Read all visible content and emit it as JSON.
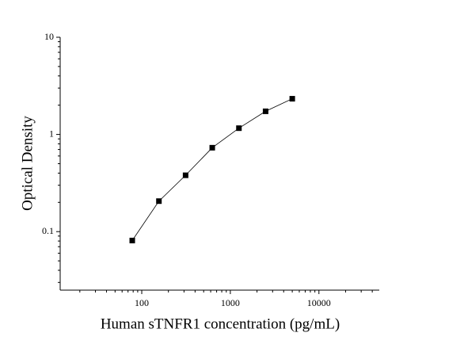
{
  "chart_data": {
    "type": "line",
    "x_label": "Human sTNFR1 concentration (pg/mL)",
    "y_label": "Optical Density",
    "x": [
      78.13,
      156.25,
      312.5,
      625,
      1250,
      2500,
      5000
    ],
    "series": [
      {
        "color": "#000000",
        "values": [
          0.081,
          0.206,
          0.38,
          0.73,
          1.16,
          1.73,
          2.33
        ]
      }
    ],
    "xlim": [
      12,
      48000
    ],
    "ylim": [
      0.025,
      10
    ],
    "x_log": true,
    "y_log": true,
    "xticks": [
      100,
      1000,
      10000
    ],
    "yticks": [
      0.1,
      1,
      10
    ]
  }
}
